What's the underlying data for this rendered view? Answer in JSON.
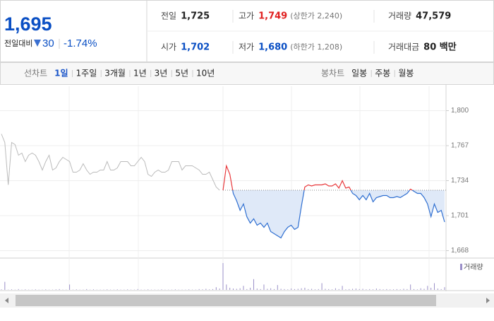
{
  "quote": {
    "price": "1,695",
    "change_label": "전일대비",
    "change": "30",
    "change_rate": "-1.74%"
  },
  "stats": [
    {
      "label": "전일",
      "value": "1,725"
    },
    {
      "label": "고가",
      "value": "1,749",
      "note": "(상한가 2,240)"
    },
    {
      "label": "거래량",
      "value": "47,579"
    },
    {
      "label": "시가",
      "value": "1,702"
    },
    {
      "label": "저가",
      "value": "1,680",
      "note": "(하한가 1,208)"
    },
    {
      "label": "거래대금",
      "value": "80 백만"
    }
  ],
  "tabs": {
    "line_label": "선차트",
    "line": [
      "1일",
      "1주일",
      "3개월",
      "1년",
      "3년",
      "5년",
      "10년"
    ],
    "candle_label": "봉차트",
    "candle": [
      "일봉",
      "주봉",
      "월봉"
    ]
  },
  "chart_data": {
    "type": "line",
    "ylim": [
      1661,
      1823
    ],
    "yticks": [
      {
        "value": 1800,
        "label": "1,800"
      },
      {
        "value": 1767,
        "label": "1,767"
      },
      {
        "value": 1734,
        "label": "1,734"
      },
      {
        "value": 1701,
        "label": "1,701"
      },
      {
        "value": 1668,
        "label": "1,668"
      }
    ],
    "reference": 1725,
    "series": [
      {
        "color": "#bbbbbb",
        "values": [
          1778,
          1770,
          1730,
          1770,
          1768,
          1758,
          1760,
          1752,
          1758,
          1760,
          1758,
          1752,
          1744,
          1752,
          1758,
          1744,
          1746,
          1752,
          1756,
          1754,
          1752,
          1742,
          1742,
          1744,
          1750,
          1744,
          1740,
          1742,
          1742,
          1744,
          1744,
          1752,
          1744,
          1744,
          1746,
          1752,
          1752,
          1752,
          1748,
          1748,
          1752,
          1756,
          1752,
          1740,
          1738,
          1742,
          1744,
          1742,
          1742,
          1744,
          1752,
          1752,
          1752,
          1744,
          1748,
          1748,
          1748,
          1746,
          1744,
          1740,
          1740,
          1742,
          1735,
          1728,
          1725,
          null,
          null,
          null,
          null,
          null,
          null,
          null,
          null,
          null,
          null,
          null,
          null,
          null,
          null,
          null,
          null,
          null,
          null,
          null,
          null,
          null,
          null,
          null,
          null,
          null,
          null,
          null,
          null,
          null,
          null,
          null,
          null,
          null,
          null,
          null,
          null,
          null,
          null,
          null,
          null,
          null,
          null,
          null,
          null,
          null,
          null,
          null,
          null,
          null,
          null,
          null,
          null,
          null,
          null,
          null,
          null,
          null,
          null,
          null,
          null,
          null,
          null,
          null,
          null,
          null,
          null
        ]
      },
      {
        "color": "#2f6fd1",
        "up_color": "#e8383b",
        "fill": "#dfe9f8",
        "values": [
          null,
          null,
          null,
          null,
          null,
          null,
          null,
          null,
          null,
          null,
          null,
          null,
          null,
          null,
          null,
          null,
          null,
          null,
          null,
          null,
          null,
          null,
          null,
          null,
          null,
          null,
          null,
          null,
          null,
          null,
          null,
          null,
          null,
          null,
          null,
          null,
          null,
          null,
          null,
          null,
          null,
          null,
          null,
          null,
          null,
          null,
          null,
          null,
          null,
          null,
          null,
          null,
          null,
          null,
          null,
          null,
          null,
          null,
          null,
          null,
          null,
          null,
          null,
          null,
          null,
          1725,
          1748,
          1740,
          1722,
          1715,
          1706,
          1712,
          1700,
          1694,
          1698,
          1692,
          1694,
          1690,
          1694,
          1686,
          1684,
          1682,
          1680,
          1686,
          1690,
          1692,
          1688,
          1690,
          1710,
          1728,
          1730,
          1729,
          1730,
          1730,
          1730,
          1731,
          1729,
          1729,
          1731,
          1727,
          1734,
          1727,
          1728,
          1722,
          1720,
          1716,
          1720,
          1716,
          1722,
          1714,
          1718,
          1719,
          1720,
          1720,
          1718,
          1718,
          1719,
          1718,
          1720,
          1722,
          1726,
          1724,
          1722,
          1722,
          1718,
          1712,
          1700,
          1712,
          1704,
          1706,
          1695
        ]
      }
    ],
    "volume_legend": "거래량",
    "volume_color": "#9a8fc8",
    "volume": [
      2,
      30,
      1,
      2,
      1,
      3,
      1,
      2,
      1,
      1,
      2,
      1,
      1,
      2,
      1,
      1,
      2,
      3,
      1,
      1,
      20,
      1,
      2,
      1,
      1,
      3,
      1,
      2,
      1,
      1,
      1,
      2,
      1,
      1,
      2,
      1,
      1,
      2,
      1,
      1,
      3,
      1,
      1,
      2,
      1,
      1,
      1,
      2,
      1,
      1,
      1,
      2,
      1,
      1,
      1,
      2,
      1,
      1,
      3,
      2,
      4,
      2,
      3,
      10,
      5,
      100,
      20,
      8,
      5,
      4,
      6,
      15,
      3,
      8,
      40,
      5,
      3,
      20,
      4,
      6,
      3,
      18,
      4,
      3,
      2,
      5,
      3,
      4,
      6,
      8,
      3,
      4,
      2,
      3,
      25,
      4,
      3,
      2,
      6,
      3,
      15,
      2,
      3,
      4,
      5,
      3,
      4,
      2,
      3,
      2,
      5,
      3,
      2,
      3,
      2,
      2,
      3,
      2,
      4,
      3,
      20,
      3,
      2,
      6,
      4,
      15,
      8,
      25,
      5,
      3,
      10
    ]
  }
}
